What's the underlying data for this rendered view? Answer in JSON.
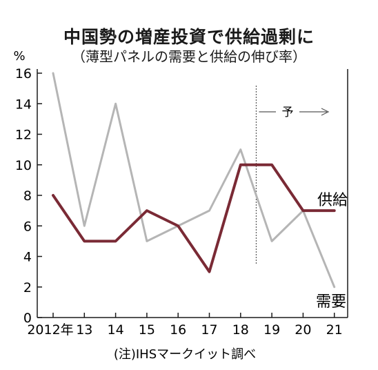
{
  "title": "中国勢の増産投資で供給過剰に",
  "subtitle": "（薄型パネルの需要と供給の伸び率）",
  "note": "(注)IHSマークイット調べ",
  "colors": {
    "supply": "#7a2a35",
    "demand": "#b5b5b5",
    "axis": "#1a1a1a",
    "forecast": "#555555"
  },
  "chart_data": {
    "type": "line",
    "ylabel": "%",
    "ylim": [
      0,
      16
    ],
    "ytick_labels": [
      "0",
      "2",
      "4",
      "6",
      "8",
      "10",
      "12",
      "14",
      "16"
    ],
    "x": [
      2012,
      2013,
      2014,
      2015,
      2016,
      2017,
      2018,
      2019,
      2020,
      2021
    ],
    "x_tick_labels": [
      "2012年",
      "13",
      "14",
      "15",
      "16",
      "17",
      "18",
      "19",
      "20",
      "21"
    ],
    "forecast_marker": {
      "label": "予",
      "starts_after": 2018.5
    },
    "grid": false,
    "series": [
      {
        "name": "需要",
        "color": "#b5b5b5",
        "values": [
          16,
          6,
          14,
          5,
          6,
          7,
          11,
          5,
          7,
          2
        ]
      },
      {
        "name": "供給",
        "color": "#7a2a35",
        "values": [
          8,
          5,
          5,
          7,
          6,
          3,
          10,
          10,
          7,
          7
        ]
      }
    ]
  }
}
